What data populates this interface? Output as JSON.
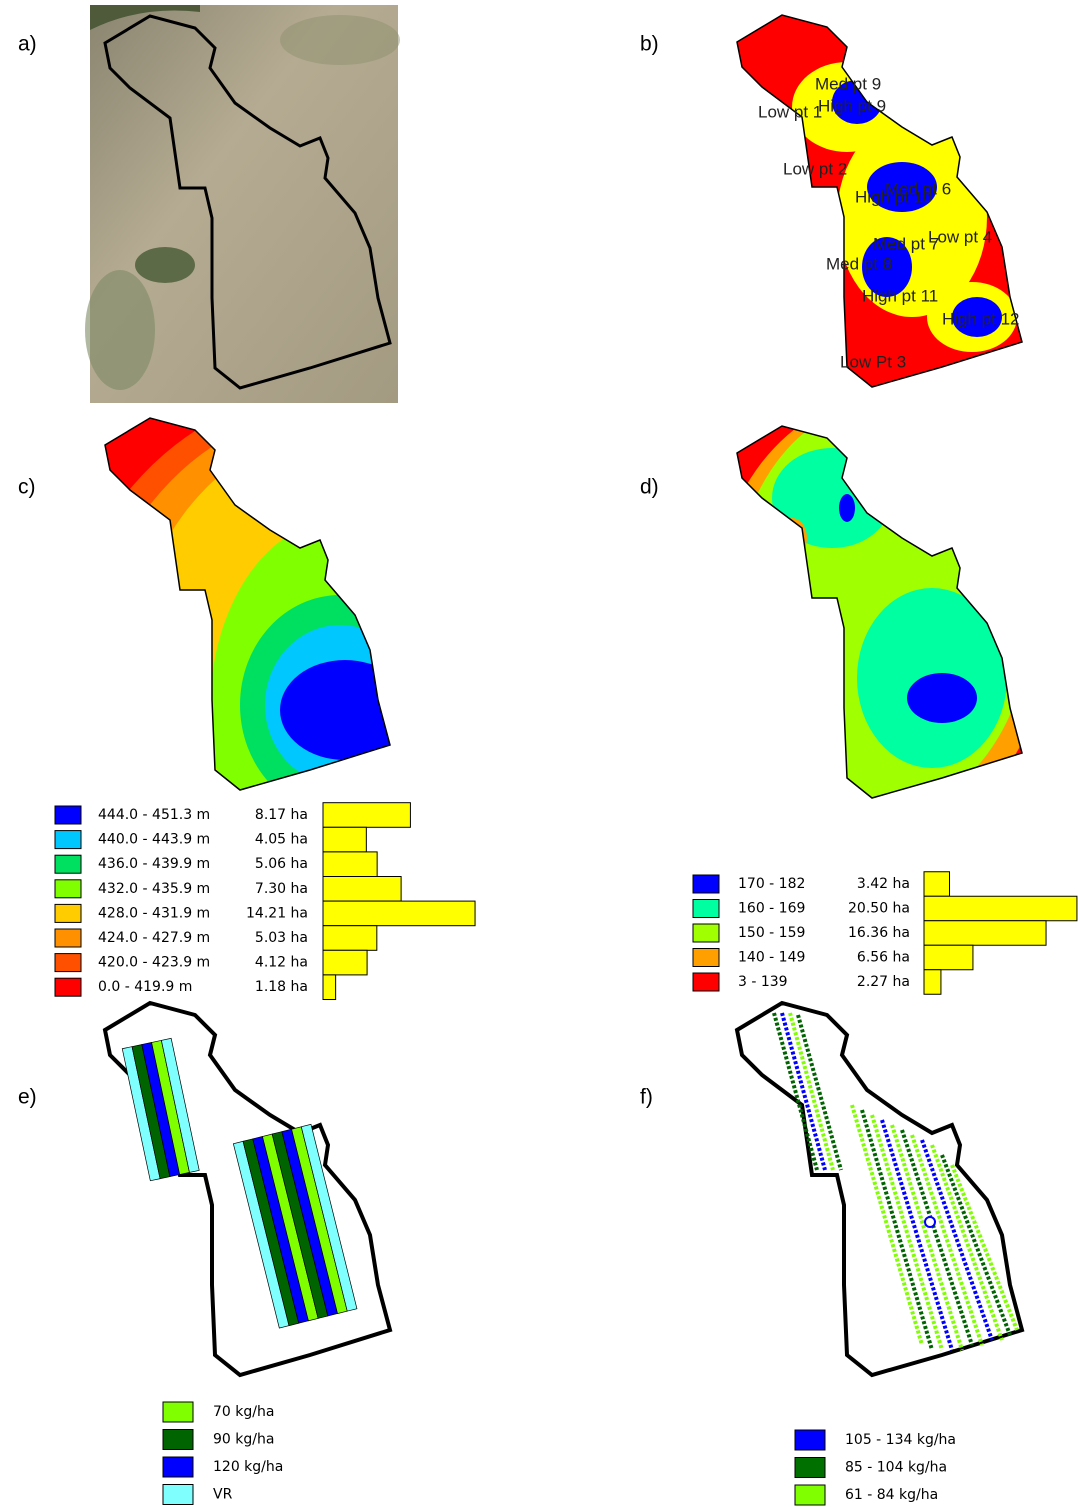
{
  "panel_a": {
    "label": "a)"
  },
  "panel_b": {
    "label": "b)",
    "point_labels": [
      "Med pt 9",
      "High pt 9",
      "Low pt 1",
      "Low pt 2",
      "Med pt 6",
      "High pt 10",
      "Med pt 7",
      "Low pt 4",
      "Med pt 8",
      "High pt 11",
      "High pt 12",
      "Low Pt 3"
    ]
  },
  "panel_c": {
    "label": "c)",
    "legend": {
      "ranges": [
        "444.0 - 451.3 m",
        "440.0 - 443.9 m",
        "436.0 - 439.9 m",
        "432.0 - 435.9 m",
        "428.0 - 431.9 m",
        "424.0 - 427.9 m",
        "420.0 - 423.9 m",
        "0.0 - 419.9 m"
      ],
      "values": [
        8.17,
        4.05,
        5.06,
        7.3,
        14.21,
        5.03,
        4.12,
        1.18
      ],
      "value_labels": [
        "8.17 ha",
        "4.05 ha",
        "5.06 ha",
        "7.30 ha",
        "14.21 ha",
        "5.03 ha",
        "4.12 ha",
        "1.18 ha"
      ],
      "colors": [
        "#0000ff",
        "#00c8ff",
        "#00e060",
        "#80ff00",
        "#ffcc00",
        "#ff9000",
        "#ff5000",
        "#ff0000"
      ],
      "bar_color": "#ffff00"
    }
  },
  "panel_d": {
    "label": "d)",
    "legend": {
      "ranges": [
        "170 - 182",
        "160 - 169",
        "150 - 159",
        "140 - 149",
        "3 - 139"
      ],
      "values": [
        3.42,
        20.5,
        16.36,
        6.56,
        2.27
      ],
      "value_labels": [
        "3.42 ha",
        "20.50 ha",
        "16.36 ha",
        "6.56 ha",
        "2.27 ha"
      ],
      "colors": [
        "#0000ff",
        "#00ffa0",
        "#a0ff00",
        "#ffa000",
        "#ff0000"
      ],
      "bar_color": "#ffff00"
    }
  },
  "panel_e": {
    "label": "e)",
    "legend": {
      "ranges": [
        "70 kg/ha",
        "90 kg/ha",
        "120 kg/ha",
        "VR"
      ],
      "colors": [
        "#80ff00",
        "#006400",
        "#0000ff",
        "#80ffff"
      ]
    }
  },
  "panel_f": {
    "label": "f)",
    "legend": {
      "ranges": [
        "105 - 134 kg/ha",
        "85 - 104 kg/ha",
        "61 - 84 kg/ha"
      ],
      "colors": [
        "#0000ff",
        "#007000",
        "#80ff00"
      ]
    }
  }
}
